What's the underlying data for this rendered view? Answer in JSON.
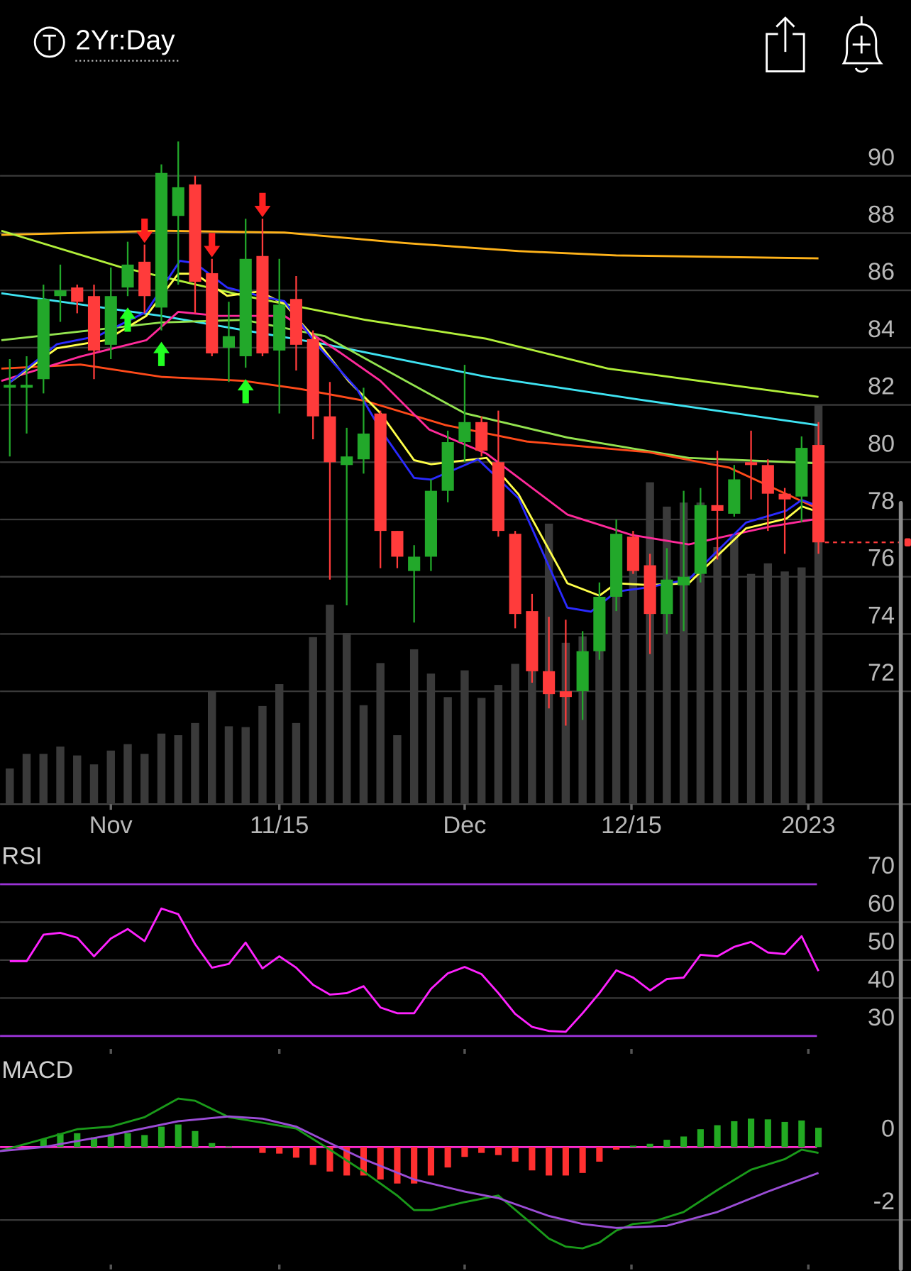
{
  "header": {
    "timeframe": "2Yr:Day"
  },
  "chart_data": [
    {
      "type": "candlestick",
      "xlim": [
        -0.577,
        53.49
      ],
      "xticks": [
        {
          "value": 6.0,
          "label": "Nov"
        },
        {
          "value": 16.0,
          "label": "11/15"
        },
        {
          "value": 27.0,
          "label": "Dec"
        },
        {
          "value": 36.9,
          "label": "12/15"
        },
        {
          "value": 47.4,
          "label": "2023"
        }
      ],
      "ylim": [
        68.06,
        92.46
      ],
      "yticks": [
        90,
        88,
        86,
        84,
        82,
        80,
        78,
        76,
        74,
        72
      ],
      "grid": true,
      "up_color": "#22a82a",
      "down_color": "#ff3b3b",
      "open": [
        82.6,
        82.6,
        82.9,
        85.8,
        86.1,
        85.8,
        84.1,
        86.1,
        87.0,
        85.4,
        88.6,
        89.7,
        86.6,
        84.0,
        83.7,
        87.2,
        83.9,
        85.7,
        84.3,
        81.6,
        79.9,
        80.1,
        81.7,
        77.6,
        76.2,
        76.7,
        79.0,
        80.7,
        81.4,
        80.0,
        77.5,
        74.8,
        72.7,
        72.0,
        72.0,
        73.4,
        75.3,
        77.4,
        76.4,
        74.7,
        75.7,
        76.1,
        78.5,
        78.2,
        80.0,
        79.9,
        78.9,
        78.8,
        80.6
      ],
      "high": [
        83.6,
        83.7,
        86.2,
        86.9,
        86.2,
        86.2,
        86.8,
        87.7,
        87.6,
        90.4,
        91.2,
        90.0,
        87.1,
        85.6,
        88.5,
        88.5,
        87.1,
        86.5,
        84.6,
        82.8,
        81.2,
        82.6,
        81.8,
        77.6,
        77.1,
        79.4,
        81.1,
        83.4,
        81.6,
        81.8,
        77.6,
        75.4,
        74.6,
        74.5,
        74.1,
        75.8,
        78.0,
        77.6,
        76.8,
        77.0,
        79.0,
        79.1,
        80.4,
        79.9,
        81.1,
        80.1,
        79.1,
        80.9,
        81.4
      ],
      "low": [
        80.2,
        81.0,
        82.4,
        84.9,
        85.2,
        82.9,
        83.6,
        85.8,
        85.2,
        84.6,
        86.2,
        85.2,
        83.7,
        82.8,
        83.3,
        83.7,
        81.7,
        83.2,
        80.8,
        75.9,
        75.0,
        79.6,
        76.3,
        76.3,
        74.4,
        76.2,
        78.6,
        80.0,
        80.2,
        77.4,
        74.2,
        72.3,
        71.4,
        70.8,
        71.0,
        73.1,
        74.8,
        76.1,
        73.3,
        74.0,
        74.1,
        75.8,
        76.6,
        78.1,
        78.7,
        77.6,
        76.8,
        77.9,
        76.8
      ],
      "close": [
        82.7,
        82.7,
        85.7,
        86.0,
        85.6,
        83.9,
        85.8,
        86.9,
        85.8,
        90.1,
        89.6,
        86.3,
        83.8,
        84.4,
        87.1,
        83.8,
        85.5,
        84.1,
        81.6,
        80.0,
        80.2,
        81.0,
        77.6,
        76.7,
        76.7,
        79.0,
        80.7,
        81.4,
        80.4,
        77.6,
        74.7,
        72.7,
        71.9,
        71.8,
        73.4,
        75.3,
        77.5,
        76.2,
        74.7,
        75.9,
        76.0,
        78.5,
        78.3,
        79.4,
        79.9,
        78.9,
        78.7,
        80.5,
        77.2
      ],
      "volume": [
        44,
        62,
        62,
        71,
        60,
        49,
        66,
        74,
        62,
        87,
        85,
        100,
        140,
        96,
        95,
        121,
        148,
        100,
        206,
        246,
        211,
        122,
        174,
        85,
        191,
        161,
        132,
        165,
        131,
        147,
        173,
        172,
        346,
        199,
        207,
        212,
        302,
        302,
        397,
        367,
        372,
        372,
        317,
        332,
        284,
        297,
        287,
        292,
        492
      ],
      "volume_lim": [
        0,
        862
      ],
      "volume_color": "#3a3a3a",
      "last_price": 77.2,
      "buy_signals": [
        7,
        9,
        14
      ],
      "sell_signals": [
        8,
        12,
        15
      ],
      "buy_color": "#22ff22",
      "sell_color": "#ff2020",
      "series": [
        {
          "color": "#ffb31a",
          "x": [
            -0.5,
            9,
            16.3,
            23.5,
            30.2,
            36,
            48
          ],
          "values": [
            87.94,
            88.08,
            88.02,
            87.65,
            87.37,
            87.22,
            87.12
          ]
        },
        {
          "color": "#b2ef3a",
          "x": [
            -0.5,
            6.6,
            13.9,
            21.1,
            28.3,
            35.5,
            48
          ],
          "values": [
            88.08,
            86.81,
            85.81,
            84.97,
            84.31,
            83.27,
            82.28
          ]
        },
        {
          "color": "#3fe3f2",
          "x": [
            -0.5,
            9,
            18.7,
            28.3,
            37.9,
            48
          ],
          "values": [
            85.9,
            85.11,
            84.12,
            82.98,
            82.14,
            81.29
          ]
        },
        {
          "color": "#93e34f",
          "x": [
            -0.5,
            9,
            13.9,
            18.7,
            23.5,
            27,
            33.1,
            40.3,
            48
          ],
          "values": [
            84.26,
            84.88,
            84.97,
            84.4,
            82.84,
            81.71,
            80.86,
            80.15,
            79.96
          ]
        },
        {
          "color": "#ff4a1a",
          "x": [
            -0.5,
            4.2,
            9,
            13.9,
            17.2,
            21.1,
            25.9,
            30.7,
            37.9,
            42.7,
            48
          ],
          "values": [
            83.27,
            83.41,
            82.98,
            82.84,
            82.56,
            82.14,
            81.29,
            80.72,
            80.35,
            79.81,
            78.37
          ]
        },
        {
          "color": "#ff2a9a",
          "x": [
            -0.5,
            4.2,
            8.1,
            10,
            12.4,
            16.3,
            19.6,
            22,
            24.9,
            28.3,
            33.1,
            36.9,
            40.3,
            45.1,
            48
          ],
          "values": [
            82.84,
            83.69,
            84.26,
            85.25,
            85.11,
            85.11,
            83.83,
            82.84,
            81.14,
            80.3,
            78.17,
            77.46,
            77.13,
            77.75,
            78.03
          ]
        },
        {
          "color": "#ffff4a",
          "x": [
            0,
            2.8,
            5.7,
            8.1,
            10,
            11,
            12.9,
            14.8,
            16.3,
            18.2,
            20.1,
            22,
            24,
            25,
            28.3,
            30.2,
            33.1,
            35,
            36,
            37.9,
            40.3,
            43.7,
            46.1,
            47,
            48
          ],
          "values": [
            82.79,
            83.98,
            84.26,
            85.11,
            86.58,
            86.58,
            85.81,
            85.96,
            85.53,
            84.26,
            82.84,
            81.71,
            80.07,
            79.93,
            80.15,
            78.88,
            75.77,
            75.34,
            75.77,
            75.71,
            75.77,
            77.69,
            78.03,
            78.46,
            78.26
          ]
        },
        {
          "color": "#2a2aff",
          "x": [
            0,
            2.8,
            5.2,
            8.1,
            10.1,
            11,
            12.9,
            14.8,
            16.3,
            18.2,
            20.6,
            22,
            24,
            25,
            27.8,
            30.2,
            33.1,
            34.5,
            36,
            37.9,
            40.3,
            43.7,
            46.1,
            47,
            48
          ],
          "values": [
            82.79,
            84.12,
            84.4,
            85.25,
            87.03,
            86.95,
            86.1,
            85.81,
            85.62,
            84.12,
            82.56,
            81.14,
            79.45,
            79.39,
            80.1,
            78.74,
            74.92,
            74.78,
            75.48,
            75.63,
            75.91,
            77.89,
            78.31,
            78.68,
            78.46
          ]
        }
      ]
    },
    {
      "type": "line",
      "title": "RSI",
      "ylim": [
        26.8,
        79.8
      ],
      "yticks": [
        70,
        60,
        50,
        40,
        30
      ],
      "grid": true,
      "level_color": "#9a33d6",
      "series": [
        {
          "color": "#ff22ff",
          "values": [
            49.7,
            49.7,
            56.7,
            57.2,
            55.9,
            51.0,
            55.7,
            58.2,
            55.0,
            63.6,
            62.1,
            54.2,
            48.0,
            49.0,
            54.6,
            47.8,
            51.0,
            48.0,
            43.5,
            40.9,
            41.3,
            43.1,
            37.5,
            36.0,
            36.0,
            42.4,
            46.5,
            48.2,
            46.3,
            41.3,
            35.8,
            32.4,
            31.3,
            31.1,
            36.0,
            41.3,
            47.3,
            45.4,
            42.0,
            45.0,
            45.4,
            51.4,
            51.0,
            53.5,
            54.8,
            52.0,
            51.6,
            56.3,
            47.1
          ]
        }
      ]
    },
    {
      "type": "macd",
      "title": "MACD",
      "ylim": [
        -3.4,
        2.56
      ],
      "yticks": [
        0,
        -2
      ],
      "grid": true,
      "zero_color": "#ff2bd0",
      "up_color": "#22aa22",
      "down_color": "#ff3030",
      "histogram": [
        0,
        0,
        0.22,
        0.38,
        0.38,
        0.27,
        0.33,
        0.38,
        0.33,
        0.56,
        0.62,
        0.44,
        0.11,
        0.02,
        0,
        -0.16,
        -0.18,
        -0.29,
        -0.49,
        -0.67,
        -0.78,
        -0.78,
        -0.89,
        -1.0,
        -1.0,
        -0.78,
        -0.56,
        -0.27,
        -0.16,
        -0.22,
        -0.4,
        -0.64,
        -0.78,
        -0.78,
        -0.71,
        -0.4,
        -0.07,
        0.04,
        0.09,
        0.2,
        0.29,
        0.49,
        0.6,
        0.71,
        0.78,
        0.76,
        0.69,
        0.73,
        0.53
      ],
      "series": [
        {
          "color": "#1a9a1a",
          "x": [
            -0.6,
            2,
            4,
            6,
            8,
            10,
            11,
            13,
            15,
            17,
            19,
            21,
            23,
            24,
            25,
            27,
            29,
            31,
            32,
            33,
            34,
            35,
            36,
            37,
            38,
            40,
            42,
            44,
            46,
            47,
            48
          ],
          "values": [
            -0.11,
            0.22,
            0.49,
            0.56,
            0.82,
            1.33,
            1.27,
            0.82,
            0.67,
            0.51,
            -0.07,
            -0.67,
            -1.33,
            -1.73,
            -1.73,
            -1.51,
            -1.33,
            -2.11,
            -2.51,
            -2.73,
            -2.78,
            -2.62,
            -2.29,
            -2.11,
            -2.07,
            -1.78,
            -1.18,
            -0.62,
            -0.33,
            -0.07,
            -0.16
          ]
        },
        {
          "color": "#9b4dd6",
          "x": [
            -0.6,
            2,
            6,
            10,
            13,
            15,
            17,
            19,
            21,
            24,
            27,
            29,
            32,
            34,
            36,
            39,
            42,
            45,
            48
          ],
          "values": [
            -0.11,
            0,
            0.33,
            0.71,
            0.84,
            0.78,
            0.56,
            0.11,
            -0.33,
            -0.89,
            -1.22,
            -1.4,
            -1.89,
            -2.11,
            -2.22,
            -2.16,
            -1.78,
            -1.22,
            -0.71
          ]
        }
      ]
    }
  ]
}
